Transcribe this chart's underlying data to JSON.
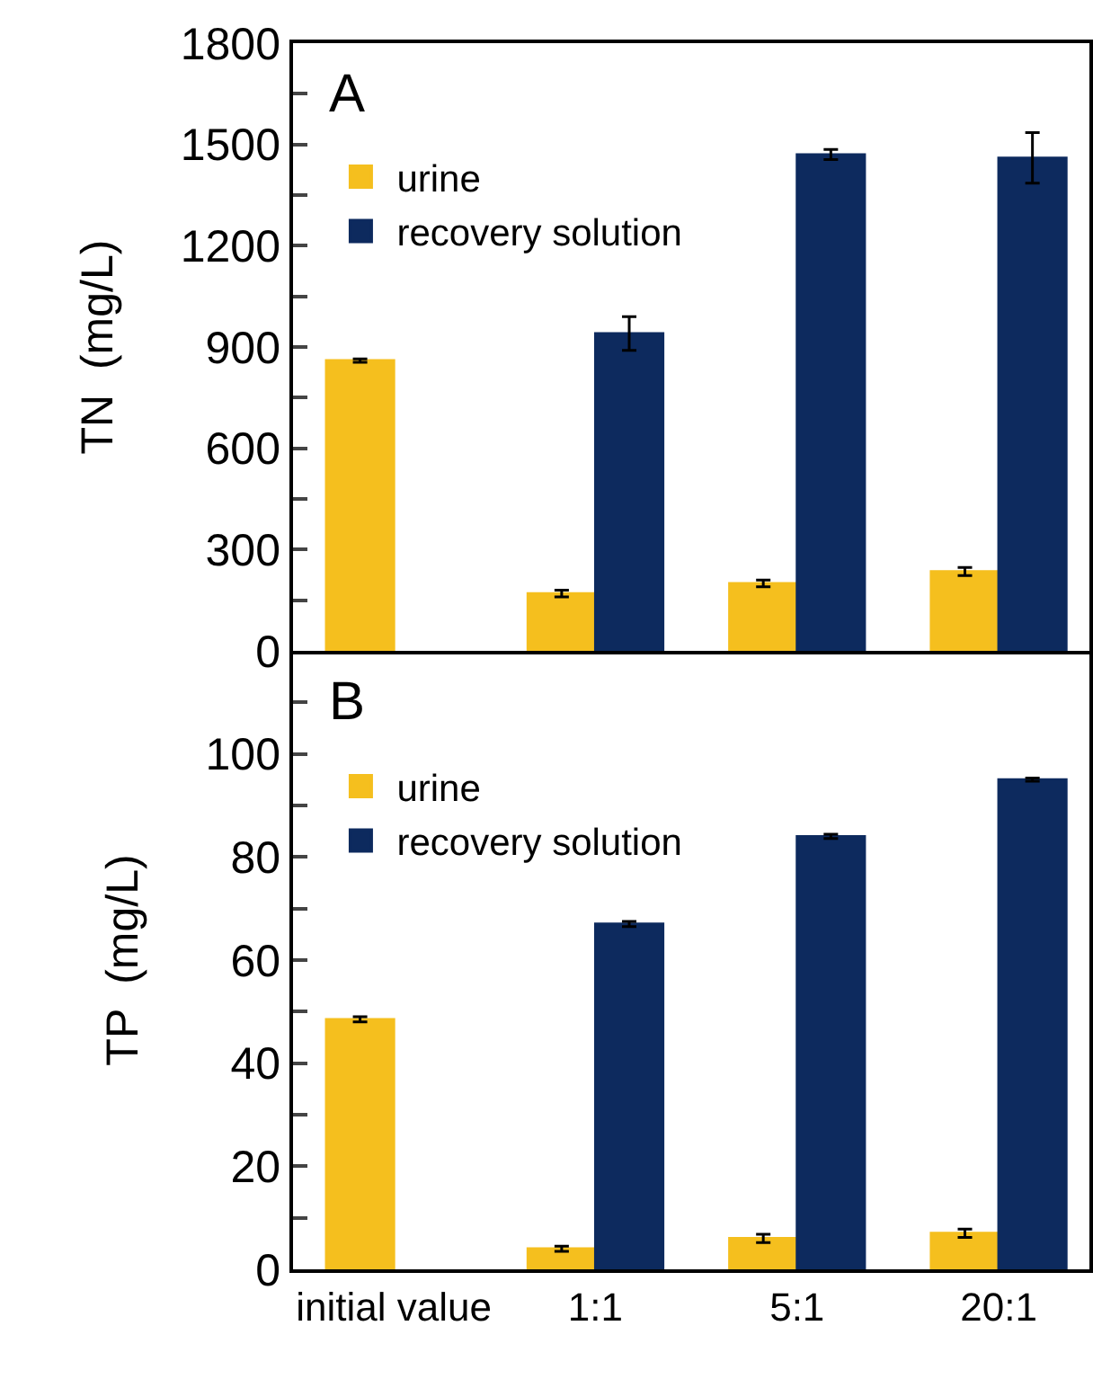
{
  "chart_data": [
    {
      "type": "bar",
      "title": "A",
      "ylabel": "TN  (mg/L)",
      "categories": [
        null,
        null,
        null,
        null
      ],
      "series": [
        {
          "name": "urine",
          "color": "#f5bf1e",
          "values": [
            860,
            170,
            200,
            235
          ],
          "errors": [
            5,
            10,
            10,
            12
          ]
        },
        {
          "name": "recovery solution",
          "color": "#0d2a5e",
          "values": [
            null,
            940,
            1470,
            1460
          ],
          "errors": [
            null,
            50,
            15,
            75
          ]
        }
      ],
      "ylim": [
        0,
        1800
      ],
      "yticks": [
        0,
        {
          "value": 150,
          "label": null
        },
        300,
        {
          "value": 450,
          "label": null
        },
        600,
        {
          "value": 750,
          "label": null
        },
        900,
        {
          "value": 1050,
          "label": null
        },
        1200,
        {
          "value": 1350,
          "label": null
        },
        1500,
        {
          "value": 1650,
          "label": null
        },
        1800
      ],
      "legend": "top left",
      "tick_labels": "y"
    },
    {
      "type": "bar",
      "title": "B",
      "ylabel": "TP  (mg/L)",
      "categories": [
        "initial value",
        "1:1",
        "5:1",
        "20:1"
      ],
      "series": [
        {
          "name": "urine",
          "color": "#f5bf1e",
          "values": [
            48.5,
            4,
            6,
            7
          ],
          "errors": [
            0.5,
            0.5,
            0.8,
            0.8
          ]
        },
        {
          "name": "recovery solution",
          "color": "#0d2a5e",
          "values": [
            null,
            67,
            84,
            95
          ],
          "errors": [
            null,
            0.5,
            0.4,
            0.3
          ]
        }
      ],
      "ylim": [
        0,
        120
      ],
      "yticks": [
        0,
        {
          "value": 10,
          "label": null
        },
        20,
        {
          "value": 30,
          "label": null
        },
        40,
        {
          "value": 50,
          "label": null
        },
        60,
        {
          "value": 70,
          "label": null
        },
        80,
        {
          "value": 90,
          "label": null
        },
        100,
        {
          "value": 110,
          "label": null
        },
        {
          "value": 120,
          "label": null
        }
      ],
      "legend": "top left"
    }
  ]
}
